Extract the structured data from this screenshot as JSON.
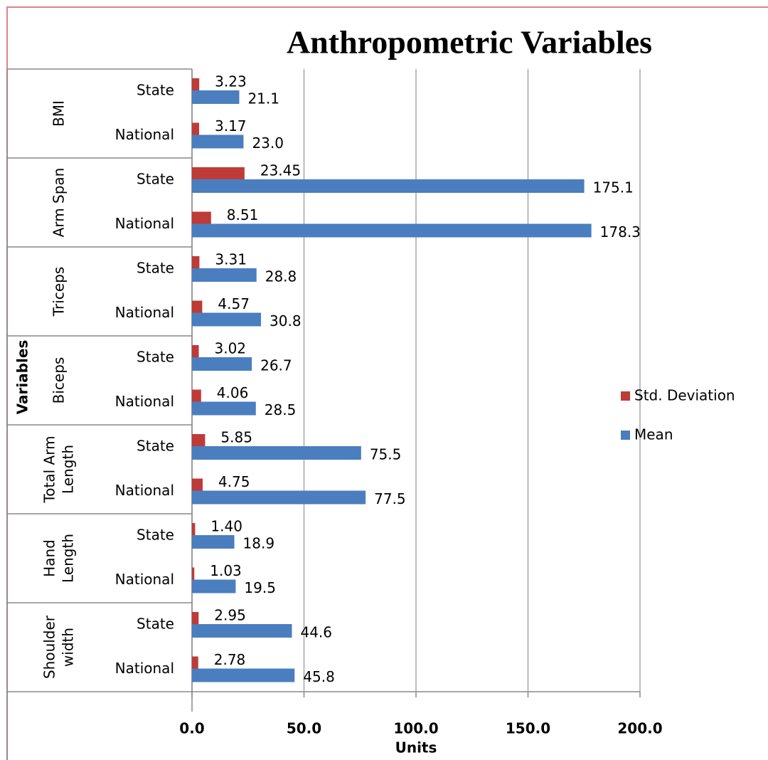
{
  "chart_data": {
    "type": "bar",
    "orientation": "horizontal",
    "title": "Anthropometric Variables",
    "x_label": "Units",
    "y_label": "Variables",
    "groups": [
      [
        "BMI"
      ],
      [
        "Arm Span"
      ],
      [
        "Triceps"
      ],
      [
        "Biceps"
      ],
      [
        "Total Arm",
        "Length"
      ],
      [
        "Hand",
        "Length"
      ],
      [
        "Shoulder",
        "width"
      ]
    ],
    "categories": [
      "State",
      "National",
      "State",
      "National",
      "State",
      "National",
      "State",
      "National",
      "State",
      "National",
      "State",
      "National",
      "State",
      "National"
    ],
    "series": [
      {
        "name": "Std. Deviation",
        "color": "#be3b37",
        "values": [
          3.23,
          3.17,
          23.45,
          8.51,
          3.31,
          4.57,
          3.02,
          4.06,
          5.85,
          4.75,
          1.4,
          1.03,
          2.95,
          2.78
        ],
        "value_labels": [
          "3.23",
          "3.17",
          "23.45",
          "8.51",
          "3.31",
          "4.57",
          "3.02",
          "4.06",
          "5.85",
          "4.75",
          "1.40",
          "1.03",
          "2.95",
          "2.78"
        ]
      },
      {
        "name": "Mean",
        "color": "#4a7ebf",
        "values": [
          21.1,
          23.0,
          175.1,
          178.3,
          28.8,
          30.8,
          26.7,
          28.5,
          75.5,
          77.5,
          18.9,
          19.5,
          44.6,
          45.8
        ],
        "value_labels": [
          "21.1",
          "23.0",
          "175.1",
          "178.3",
          "28.8",
          "30.8",
          "26.7",
          "28.5",
          "75.5",
          "77.5",
          "18.9",
          "19.5",
          "44.6",
          "45.8"
        ]
      }
    ],
    "xlim": [
      0,
      200
    ],
    "xticks": [
      {
        "value": 0,
        "label": "0.0"
      },
      {
        "value": 50,
        "label": "50.0"
      },
      {
        "value": 100,
        "label": "100.0"
      },
      {
        "value": 150,
        "label": "150.0"
      },
      {
        "value": 200,
        "label": "200.0"
      }
    ],
    "grid": true,
    "legend": "right"
  }
}
